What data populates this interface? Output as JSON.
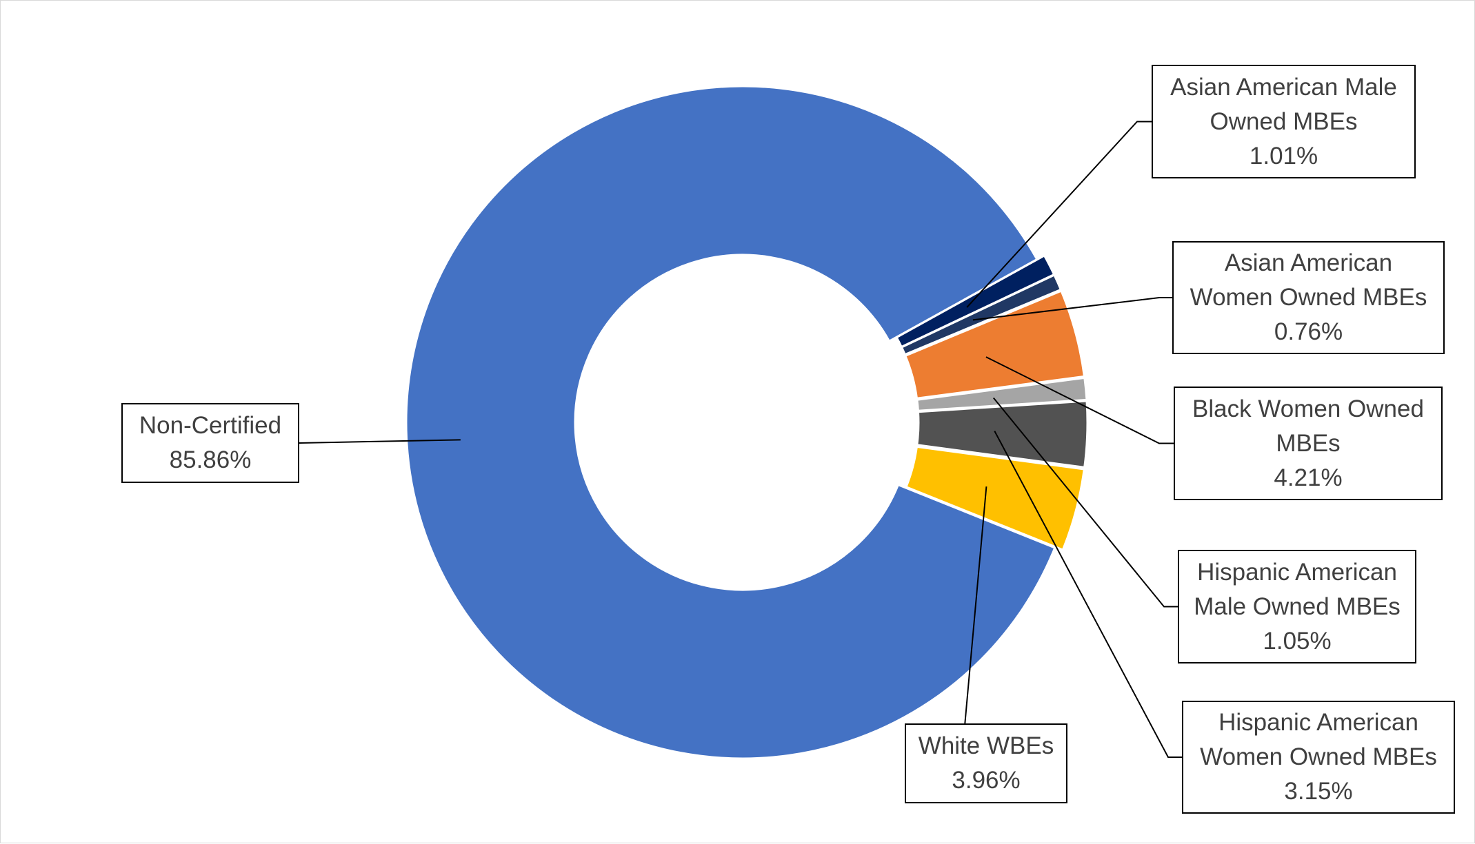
{
  "chart_data": {
    "type": "pie",
    "variant": "donut",
    "title": "",
    "legend": "none",
    "slices": [
      {
        "label_lines": [
          "Asian American Male",
          "Owned MBEs"
        ],
        "value_text": "1.01%",
        "value": 1.01,
        "color": "#002060"
      },
      {
        "label_lines": [
          "Asian American",
          "Women Owned MBEs"
        ],
        "value_text": "0.76%",
        "value": 0.76,
        "color": "#203864"
      },
      {
        "label_lines": [
          "Black Women Owned",
          "MBEs"
        ],
        "value_text": "4.21%",
        "value": 4.21,
        "color": "#ED7D31"
      },
      {
        "label_lines": [
          "Hispanic American",
          "Male Owned MBEs"
        ],
        "value_text": "1.05%",
        "value": 1.05,
        "color": "#A5A5A5"
      },
      {
        "label_lines": [
          "Hispanic American",
          "Women Owned MBEs"
        ],
        "value_text": "3.15%",
        "value": 3.15,
        "color": "#525252"
      },
      {
        "label_lines": [
          "White WBEs"
        ],
        "value_text": "3.96%",
        "value": 3.96,
        "color": "#FFC000"
      },
      {
        "label_lines": [
          "Non-Certified"
        ],
        "value_text": "85.86%",
        "value": 85.86,
        "color": "#4472C4"
      }
    ]
  }
}
